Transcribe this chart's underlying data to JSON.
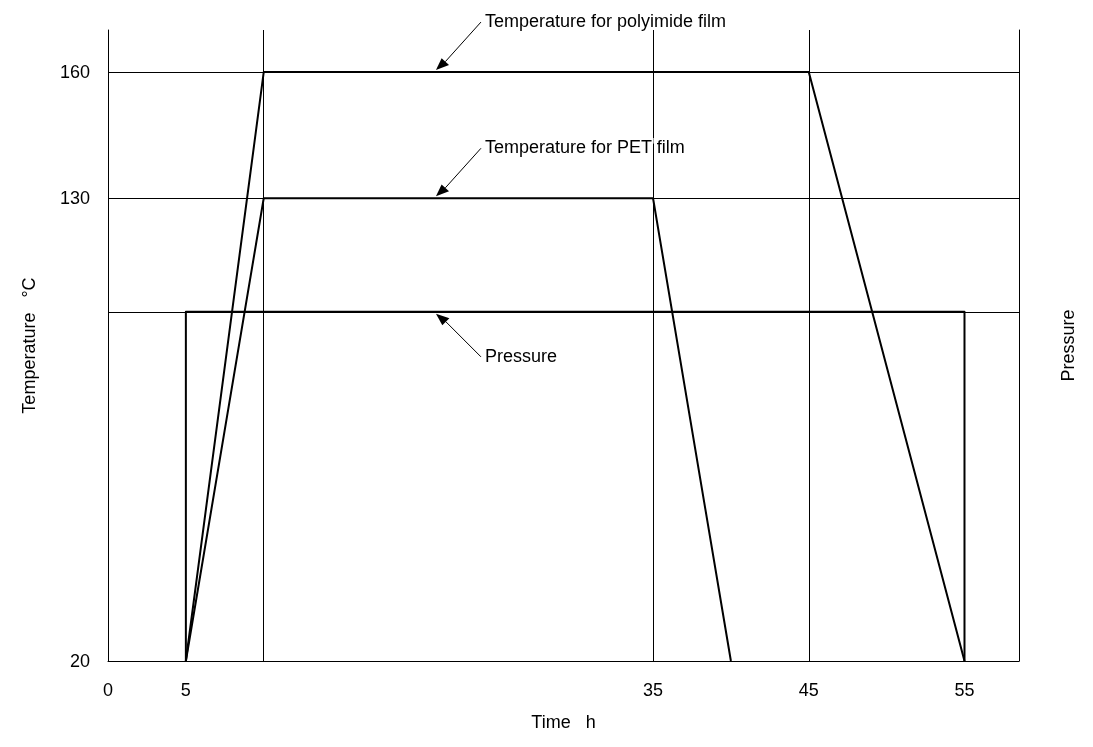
{
  "chart_data": {
    "type": "line",
    "xlabel": "Time   h",
    "ylabel": "Temperature   °C",
    "y2label": "Pressure",
    "xlim": [
      0,
      58.5
    ],
    "xticks": [
      0,
      5,
      35,
      45,
      55
    ],
    "ylim": [
      20,
      170
    ],
    "yticks": [
      20,
      130,
      160
    ],
    "series": [
      {
        "name": "Temperature for polyimide film",
        "color": "#000000",
        "x": [
          5,
          10,
          45,
          55
        ],
        "values": [
          20,
          160,
          160,
          20
        ]
      },
      {
        "name": "Temperature for PET film",
        "color": "#000000",
        "x": [
          5,
          10,
          35,
          40
        ],
        "values": [
          20,
          130,
          130,
          20
        ]
      },
      {
        "name": "Pressure",
        "color": "#000000",
        "x": [
          5,
          5,
          55,
          55
        ],
        "values": [
          20,
          103,
          103,
          20
        ]
      }
    ],
    "ref_lines": [
      {
        "axis": "x",
        "value": 10,
        "color": "#000000"
      },
      {
        "axis": "x",
        "value": 35,
        "color": "#000000"
      },
      {
        "axis": "x",
        "value": 45,
        "color": "#000000"
      },
      {
        "axis": "y",
        "value": 160,
        "color": "#000000"
      },
      {
        "axis": "y",
        "value": 130,
        "color": "#000000"
      },
      {
        "axis": "y",
        "value": 103,
        "color": "#000000"
      }
    ],
    "grid": false,
    "legend": false,
    "marker": "none",
    "line_style": "solid"
  }
}
